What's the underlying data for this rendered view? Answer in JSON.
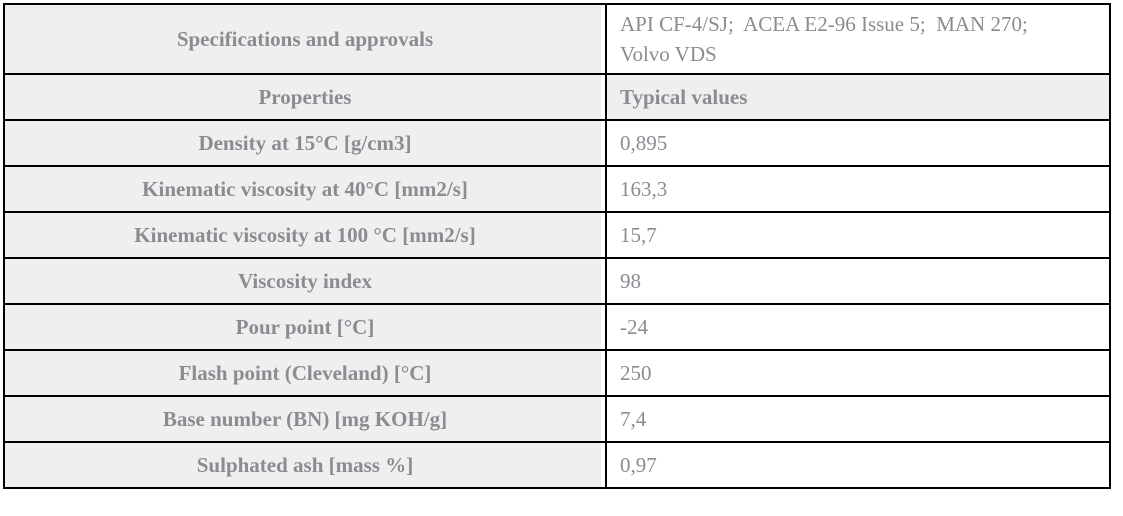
{
  "colors": {
    "cell_background": "#f0efef",
    "value_background": "#ffffff",
    "text": "#8b8b92",
    "border": "#000000"
  },
  "table": {
    "spec_row": {
      "label": "Specifications and approvals",
      "value": "API CF-4/SJ;  ACEA E2-96 Issue 5;  MAN 270;\nVolvo VDS"
    },
    "header_row": {
      "label": "Properties",
      "value": "Typical values"
    },
    "rows": [
      {
        "label": "Density at 15°C [g/cm3]",
        "value": "0,895"
      },
      {
        "label": "Kinematic viscosity at 40°C [mm2/s]",
        "value": "163,3"
      },
      {
        "label": "Kinematic viscosity at 100 °C [mm2/s]",
        "value": "15,7"
      },
      {
        "label": "Viscosity index",
        "value": "98"
      },
      {
        "label": "Pour point [°C]",
        "value": "-24"
      },
      {
        "label": "Flash point (Cleveland) [°C]",
        "value": "250"
      },
      {
        "label": "Base number (BN) [mg KOH/g]",
        "value": "7,4"
      },
      {
        "label": "Sulphated ash [mass %]",
        "value": "0,97"
      }
    ]
  }
}
